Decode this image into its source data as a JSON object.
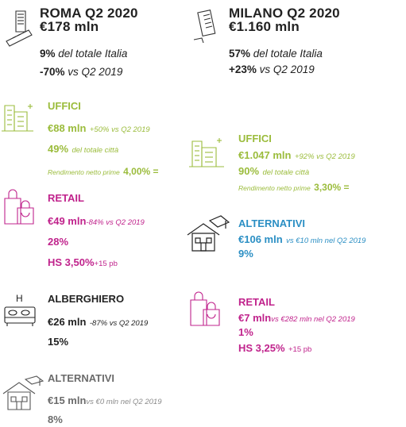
{
  "roma": {
    "title": "ROMA Q2 2020",
    "total": "€178 mln",
    "share_value": "9%",
    "share_label": "del totale Italia",
    "change_value": "-70%",
    "change_label": "vs Q2 2019",
    "uffici": {
      "title": "UFFICI",
      "amount": "€88 mln",
      "amount_note": "+50% vs Q2 2019",
      "share_value": "49%",
      "share_label": "del totale città",
      "yield_label": "Rendimento netto prime",
      "yield_value": "4,00% ="
    },
    "retail": {
      "title": "RETAIL",
      "amount": "€49 mln",
      "amount_note": "-84% vs Q2 2019",
      "share_value": "28%",
      "hs_value": "HS 3,50%",
      "hs_note": "+15 pb"
    },
    "alberghiero": {
      "title": "ALBERGHIERO",
      "icon_letter": "H",
      "amount": "€26 mln",
      "amount_note": "-87% vs Q2 2019",
      "share_value": "15%"
    },
    "alternativi": {
      "title": "ALTERNATIVI",
      "amount": "€15 mln",
      "amount_note": "vs €0 mln nel Q2 2019",
      "share_value": "8%"
    }
  },
  "milano": {
    "title": "MILANO Q2 2020",
    "total": "€1.160 mln",
    "share_value": "57%",
    "share_label": "del totale Italia",
    "change_value": "+23%",
    "change_label": "vs Q2 2019",
    "uffici": {
      "title": "UFFICI",
      "amount": "€1.047 mln",
      "amount_note": "+92% vs Q2 2019",
      "share_value": "90%",
      "share_label": "del totale città",
      "yield_label": "Rendimento netto prime",
      "yield_value": "3,30% ="
    },
    "alternativi": {
      "title": "ALTERNATIVI",
      "amount": "€106 mln",
      "amount_note": "vs €10 mln nel Q2 2019",
      "share_value": "9%"
    },
    "retail": {
      "title": "RETAIL",
      "amount": "€7 mln",
      "amount_note": "vs €282 mln nel Q2 2019",
      "share_value": "1%",
      "hs_value": "HS 3,25%",
      "hs_note": "+15 pb"
    }
  },
  "colors": {
    "uffici": "#9bbc3c",
    "retail": "#c0238c",
    "alternativi_milano": "#2b8fc4",
    "alternativi_roma": "#6b6b6b",
    "text": "#222222"
  },
  "icons": {
    "city": "city-skyline-icon",
    "office": "office-building-icon",
    "retail": "shopping-bag-icon",
    "hotel": "hotel-bed-icon",
    "alternative": "student-housing-icon"
  }
}
